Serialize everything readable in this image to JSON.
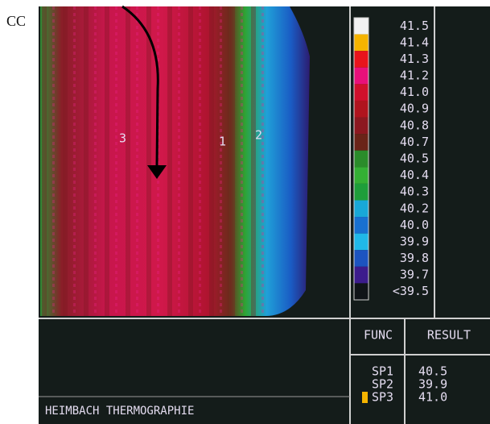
{
  "corner_label": "CC",
  "scale": [
    {
      "label": "41.5",
      "color": "#f2f2f2"
    },
    {
      "label": "41.4",
      "color": "#f5b400"
    },
    {
      "label": "41.3",
      "color": "#e8141c"
    },
    {
      "label": "41.2",
      "color": "#e8107a"
    },
    {
      "label": "41.0",
      "color": "#d0102c"
    },
    {
      "label": "40.9",
      "color": "#b0141e"
    },
    {
      "label": "40.8",
      "color": "#8c1820"
    },
    {
      "label": "40.7",
      "color": "#6a2418"
    },
    {
      "label": "40.5",
      "color": "#2a8c2a"
    },
    {
      "label": "40.4",
      "color": "#34b034"
    },
    {
      "label": "40.3",
      "color": "#1e9e3a"
    },
    {
      "label": "40.2",
      "color": "#18a8d8"
    },
    {
      "label": "40.0",
      "color": "#1870d0"
    },
    {
      "label": "39.9",
      "color": "#20b8e8"
    },
    {
      "label": "39.8",
      "color": "#1c54c0"
    },
    {
      "label": "39.7",
      "color": "#3c1c8c"
    },
    {
      "label": "<39.5",
      "color": "#101418"
    }
  ],
  "spots": [
    "3",
    "1",
    "2"
  ],
  "table": {
    "headers": [
      "FUNC",
      "RESULT"
    ],
    "rows": [
      [
        "SP1",
        "40.5"
      ],
      [
        "SP2",
        "39.9"
      ],
      [
        "SP3",
        "41.0"
      ]
    ]
  },
  "footer": "HEIMBACH THERMOGRAPHIE"
}
